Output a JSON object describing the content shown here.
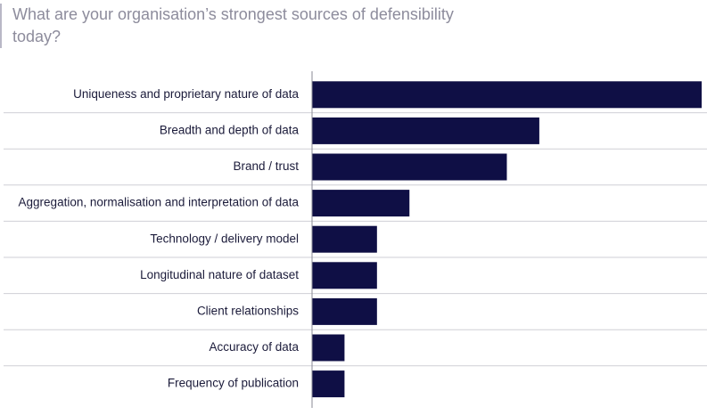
{
  "chart_data": {
    "type": "bar",
    "orientation": "horizontal",
    "title": "What are your organisation’s strongest sources of defensibility today?",
    "categories": [
      "Uniqueness and proprietary nature of data",
      "Breadth and depth of data",
      "Brand / trust",
      "Aggregation, normalisation and interpretation of data",
      "Technology / delivery model",
      "Longitudinal nature of dataset",
      "Client relationships",
      "Accuracy of data",
      "Frequency of publication"
    ],
    "values": [
      12,
      7,
      6,
      3,
      2,
      2,
      2,
      1,
      1
    ],
    "xlim": [
      0,
      12
    ],
    "xlabel": "",
    "ylabel": "",
    "grid": false,
    "legend": "none",
    "colors": {
      "bar": "#0f0f45",
      "row_divider": "#cfcfd6",
      "axis": "#8a8a96",
      "label": "#1b1b3a",
      "title": "#8d8c9c"
    }
  }
}
